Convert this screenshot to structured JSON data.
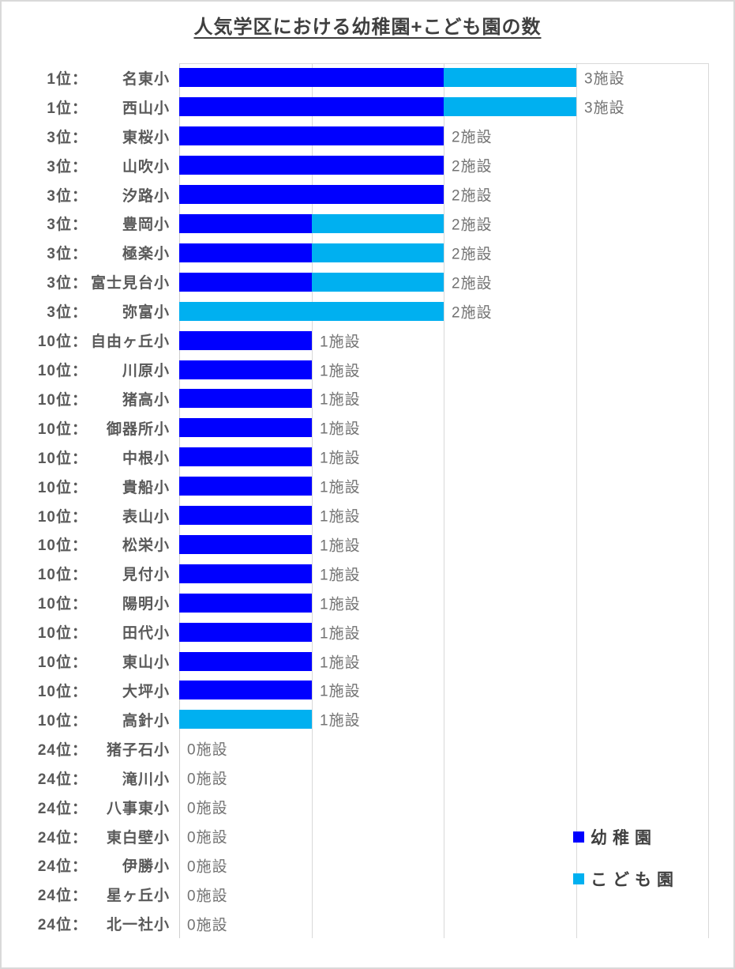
{
  "title": "人気学区における幼稚園+こども園の数",
  "colors": {
    "yochien": "#0000FF",
    "kodomoen": "#00B0F0",
    "gridline": "#D9D9D9",
    "category_text": "#595959",
    "value_text": "#737373",
    "title_text": "#3F3F3F"
  },
  "chart_data": {
    "type": "bar",
    "orientation": "horizontal",
    "stacked": true,
    "title": "人気学区における幼稚園+こども園の数",
    "xlabel": "",
    "ylabel": "",
    "xlim": [
      0,
      4
    ],
    "gridlines": true,
    "legend_position": "bottom-right",
    "unit_suffix": "施設",
    "categories": [
      {
        "rank": "1位：",
        "name": "名東小"
      },
      {
        "rank": "1位：",
        "name": "西山小"
      },
      {
        "rank": "3位：",
        "name": "東桜小"
      },
      {
        "rank": "3位：",
        "name": "山吹小"
      },
      {
        "rank": "3位：",
        "name": "汐路小"
      },
      {
        "rank": "3位：",
        "name": "豊岡小"
      },
      {
        "rank": "3位：",
        "name": "極楽小"
      },
      {
        "rank": "3位：",
        "name": "富士見台小"
      },
      {
        "rank": "3位：",
        "name": "弥富小"
      },
      {
        "rank": "10位：",
        "name": "自由ヶ丘小"
      },
      {
        "rank": "10位：",
        "name": "川原小"
      },
      {
        "rank": "10位：",
        "name": "猪高小"
      },
      {
        "rank": "10位：",
        "name": "御器所小"
      },
      {
        "rank": "10位：",
        "name": "中根小"
      },
      {
        "rank": "10位：",
        "name": "貴船小"
      },
      {
        "rank": "10位：",
        "name": "表山小"
      },
      {
        "rank": "10位：",
        "name": "松栄小"
      },
      {
        "rank": "10位：",
        "name": "見付小"
      },
      {
        "rank": "10位：",
        "name": "陽明小"
      },
      {
        "rank": "10位：",
        "name": "田代小"
      },
      {
        "rank": "10位：",
        "name": "東山小"
      },
      {
        "rank": "10位：",
        "name": "大坪小"
      },
      {
        "rank": "10位：",
        "name": "高針小"
      },
      {
        "rank": "24位：",
        "name": "猪子石小"
      },
      {
        "rank": "24位：",
        "name": "滝川小"
      },
      {
        "rank": "24位：",
        "name": "八事東小"
      },
      {
        "rank": "24位：",
        "name": "東白壁小"
      },
      {
        "rank": "24位：",
        "name": "伊勝小"
      },
      {
        "rank": "24位：",
        "name": "星ヶ丘小"
      },
      {
        "rank": "24位：",
        "name": "北一社小"
      }
    ],
    "series": [
      {
        "name": "幼稚園",
        "color": "#0000FF",
        "values": [
          2,
          2,
          2,
          2,
          2,
          1,
          1,
          1,
          0,
          1,
          1,
          1,
          1,
          1,
          1,
          1,
          1,
          1,
          1,
          1,
          1,
          1,
          0,
          0,
          0,
          0,
          0,
          0,
          0,
          0
        ]
      },
      {
        "name": "こども園",
        "color": "#00B0F0",
        "values": [
          1,
          1,
          0,
          0,
          0,
          1,
          1,
          1,
          2,
          0,
          0,
          0,
          0,
          0,
          0,
          0,
          0,
          0,
          0,
          0,
          0,
          0,
          1,
          0,
          0,
          0,
          0,
          0,
          0,
          0
        ]
      }
    ],
    "data_labels": [
      "3施設",
      "3施設",
      "2施設",
      "2施設",
      "2施設",
      "2施設",
      "2施設",
      "2施設",
      "2施設",
      "1施設",
      "1施設",
      "1施設",
      "1施設",
      "1施設",
      "1施設",
      "1施設",
      "1施設",
      "1施設",
      "1施設",
      "1施設",
      "1施設",
      "1施設",
      "1施設",
      "0施設",
      "0施設",
      "0施設",
      "0施設",
      "0施設",
      "0施設",
      "0施設"
    ]
  }
}
